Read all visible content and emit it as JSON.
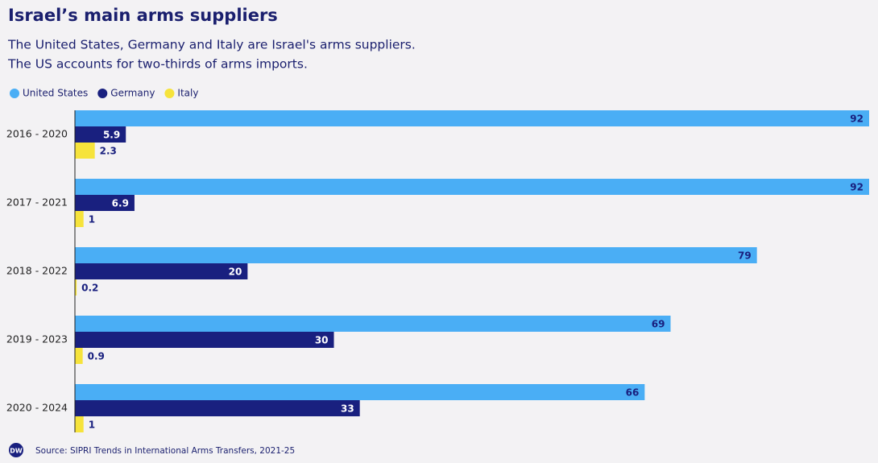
{
  "chart_data": {
    "type": "hbar",
    "title": "Israel’s main arms suppliers",
    "subtitle": [
      "The United States, Germany and Italy are Israel's arms suppliers.",
      "The US accounts for two-thirds of arms imports."
    ],
    "categories": [
      "2016 - 2020",
      "2017 - 2021",
      "2018 - 2022",
      "2019 - 2023",
      "2020 - 2024"
    ],
    "series": [
      {
        "name": "United States",
        "color": "#4aaef5",
        "values": [
          92,
          92,
          79,
          69,
          66
        ]
      },
      {
        "name": "Germany",
        "color": "#19207f",
        "values": [
          5.9,
          6.9,
          20,
          30,
          33
        ]
      },
      {
        "name": "Italy",
        "color": "#f6e33b",
        "values": [
          2.3,
          1,
          0.2,
          0.9,
          1
        ]
      }
    ],
    "legend": "top-left",
    "logo": "DW",
    "source": "Source: SIPRI Trends in International Arms Transfers, 2021-25"
  }
}
